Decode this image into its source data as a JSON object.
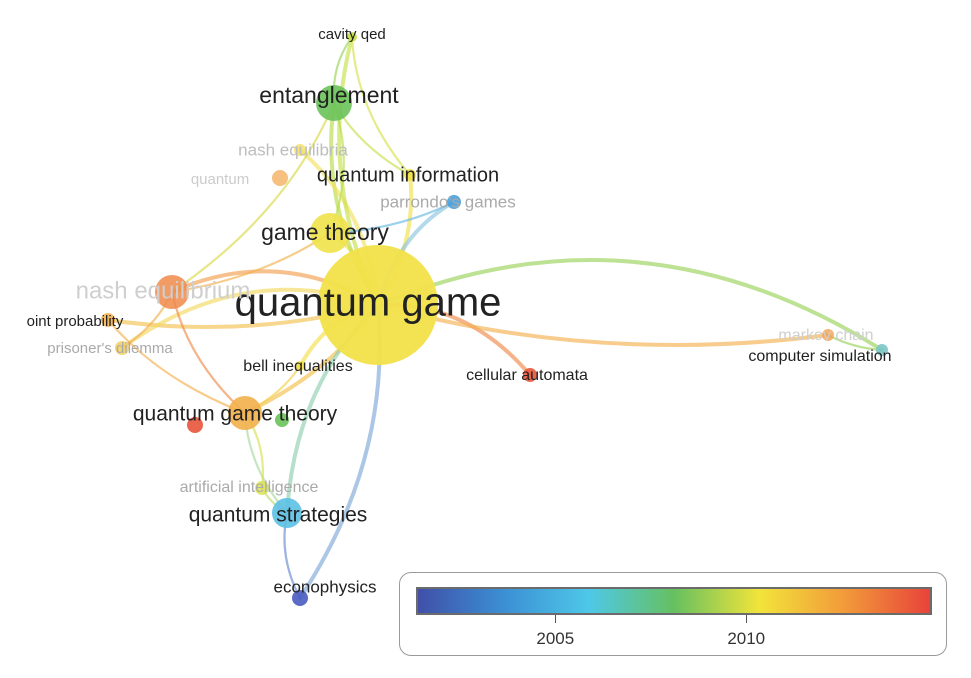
{
  "nodes": [
    {
      "id": "quantum-game",
      "label": "quantum game",
      "color": "#f2e14a",
      "opacity": 0.95,
      "label_color": "#222222"
    },
    {
      "id": "game-theory",
      "label": "game theory",
      "color": "#f0e24a",
      "opacity": 0.9,
      "label_color": "#222222"
    },
    {
      "id": "entanglement",
      "label": "entanglement",
      "color": "#6ac25a",
      "opacity": 0.9,
      "label_color": "#222222"
    },
    {
      "id": "cavity-qed",
      "label": "cavity qed",
      "color": "#c6e04a",
      "opacity": 0.9,
      "label_color": "#222222"
    },
    {
      "id": "nash-equilibria",
      "label": "nash equilibria",
      "color": "#f2e060",
      "opacity": 0.8,
      "label_color": "#bdbdbd"
    },
    {
      "id": "quantum-info-faded",
      "label": "quantum",
      "color": "#f2b060",
      "opacity": 0.8,
      "label_color": "#cccccc"
    },
    {
      "id": "quantum-information",
      "label": "quantum information",
      "color": "#f2e14a",
      "opacity": 0.9,
      "label_color": "#222222"
    },
    {
      "id": "parrondos-games",
      "label": "parrondo's games",
      "color": "#4aa0dc",
      "opacity": 0.9,
      "label_color": "#aaaaaa"
    },
    {
      "id": "nash-equilibrium",
      "label": "nash equilibrium",
      "color": "#f08a4a",
      "opacity": 0.85,
      "label_color": "#cfcfcf"
    },
    {
      "id": "joint-probability",
      "label": "oint probability",
      "color": "#f2b050",
      "opacity": 0.85,
      "label_color": "#222222"
    },
    {
      "id": "prisoners-dilemma",
      "label": "prisoner's dilemma",
      "color": "#f2d060",
      "opacity": 0.85,
      "label_color": "#aaaaaa"
    },
    {
      "id": "bell-inequalities",
      "label": "bell inequalities",
      "color": "#f2e14a",
      "opacity": 0.9,
      "label_color": "#222222"
    },
    {
      "id": "quantum-game-theory",
      "label": "quantum game theory",
      "color": "#f2b04a",
      "opacity": 0.9,
      "label_color": "#222222"
    },
    {
      "id": "qgt-red",
      "label": "",
      "color": "#e8543a",
      "opacity": 0.9,
      "label_color": "#222222"
    },
    {
      "id": "qgt-green",
      "label": "",
      "color": "#6ac25a",
      "opacity": 0.9,
      "label_color": "#222222"
    },
    {
      "id": "cellular-automata",
      "label": "cellular automata",
      "color": "#e8553a",
      "opacity": 0.9,
      "label_color": "#222222"
    },
    {
      "id": "markov-chain",
      "label": "markov chain",
      "color": "#f2a050",
      "opacity": 0.8,
      "label_color": "#cfcfcf"
    },
    {
      "id": "computer-simulation",
      "label": "computer simulation",
      "color": "#7cc6c8",
      "opacity": 0.9,
      "label_color": "#222222"
    },
    {
      "id": "artificial-intelligence",
      "label": "artificial intelligence",
      "color": "#d8e04a",
      "opacity": 0.8,
      "label_color": "#aaaaaa"
    },
    {
      "id": "quantum-strategies",
      "label": "quantum strategies",
      "color": "#5cc0e4",
      "opacity": 0.9,
      "label_color": "#222222"
    },
    {
      "id": "econophysics",
      "label": "econophysics",
      "color": "#4a5cc0",
      "opacity": 0.9,
      "label_color": "#222222"
    }
  ],
  "links": [
    {
      "source": "quantum-game",
      "target": "game-theory",
      "color": "#f2e14a"
    },
    {
      "source": "quantum-game",
      "target": "entanglement",
      "color": "#b8dc4a"
    },
    {
      "source": "quantum-game",
      "target": "nash-equilibrium",
      "color": "#f2a050"
    },
    {
      "source": "quantum-game",
      "target": "joint-probability",
      "color": "#f2c050"
    },
    {
      "source": "quantum-game",
      "target": "prisoners-dilemma",
      "color": "#f2d860"
    },
    {
      "source": "quantum-game",
      "target": "quantum-game-theory",
      "color": "#f2c04a"
    },
    {
      "source": "quantum-game",
      "target": "bell-inequalities",
      "color": "#f2e14a"
    },
    {
      "source": "quantum-game",
      "target": "cellular-automata",
      "color": "#f08a4a"
    },
    {
      "source": "quantum-game",
      "target": "markov-chain",
      "color": "#f2b050"
    },
    {
      "source": "quantum-game",
      "target": "computer-simulation",
      "color": "#9ad25a"
    },
    {
      "source": "quantum-game",
      "target": "quantum-strategies",
      "color": "#8fd0b0"
    },
    {
      "source": "quantum-game",
      "target": "econophysics",
      "color": "#7fa8d8"
    },
    {
      "source": "quantum-game",
      "target": "quantum-information",
      "color": "#f2e14a"
    },
    {
      "source": "quantum-game",
      "target": "parrondos-games",
      "color": "#8cc4e0"
    },
    {
      "source": "quantum-game",
      "target": "nash-equilibria",
      "color": "#f2e060"
    },
    {
      "source": "quantum-game",
      "target": "cavity-qed",
      "color": "#c6e04a"
    },
    {
      "source": "game-theory",
      "target": "entanglement",
      "color": "#b8dc4a"
    },
    {
      "source": "game-theory",
      "target": "nash-equilibrium",
      "color": "#f2b050"
    },
    {
      "source": "game-theory",
      "target": "parrondos-games",
      "color": "#6ab8e0"
    },
    {
      "source": "entanglement",
      "target": "cavity-qed",
      "color": "#9ad25a"
    },
    {
      "source": "entanglement",
      "target": "quantum-information",
      "color": "#c6e04a"
    },
    {
      "source": "entanglement",
      "target": "nash-equilibrium",
      "color": "#d8d84a"
    },
    {
      "source": "nash-equilibrium",
      "target": "quantum-game-theory",
      "color": "#f08a4a"
    },
    {
      "source": "nash-equilibrium",
      "target": "prisoners-dilemma",
      "color": "#f2b050"
    },
    {
      "source": "quantum-game-theory",
      "target": "quantum-strategies",
      "color": "#a8d8a0"
    },
    {
      "source": "quantum-game-theory",
      "target": "artificial-intelligence",
      "color": "#d8e04a"
    },
    {
      "source": "quantum-strategies",
      "target": "econophysics",
      "color": "#6a88d0"
    },
    {
      "source": "quantum-strategies",
      "target": "artificial-intelligence",
      "color": "#b8dc6a"
    },
    {
      "source": "markov-chain",
      "target": "computer-simulation",
      "color": "#9ad25a"
    },
    {
      "source": "quantum-information",
      "target": "cavity-qed",
      "color": "#d8e04a"
    },
    {
      "source": "joint-probability",
      "target": "quantum-game-theory",
      "color": "#f2b050"
    },
    {
      "source": "bell-inequalities",
      "target": "quantum-game-theory",
      "color": "#f2d04a"
    }
  ],
  "legend": {
    "gradient": [
      "#4050a8",
      "#3b8fd4",
      "#4ec8e8",
      "#66c060",
      "#f2e43a",
      "#f29a3a",
      "#e8433a"
    ],
    "ticks": [
      {
        "label": "2005",
        "value": 0.27
      },
      {
        "label": "2010",
        "value": 0.64
      }
    ]
  }
}
